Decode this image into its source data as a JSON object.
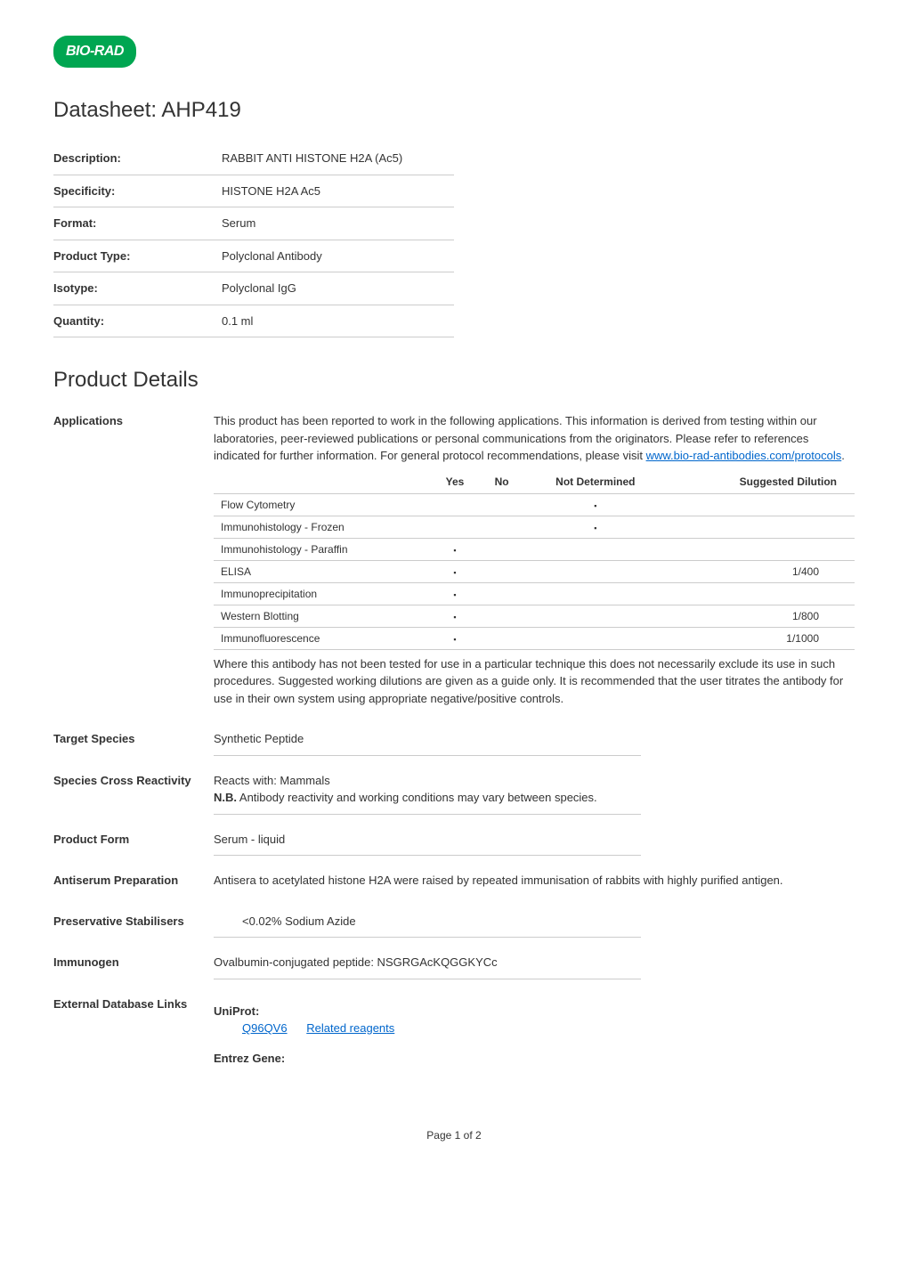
{
  "logo": {
    "text": "BIO-RAD"
  },
  "title": "Datasheet: AHP419",
  "info_table": {
    "rows": [
      {
        "label": "Description:",
        "value": "RABBIT ANTI HISTONE H2A (Ac5)"
      },
      {
        "label": "Specificity:",
        "value": "HISTONE H2A Ac5"
      },
      {
        "label": "Format:",
        "value": "Serum"
      },
      {
        "label": "Product Type:",
        "value": "Polyclonal Antibody"
      },
      {
        "label": "Isotype:",
        "value": "Polyclonal IgG"
      },
      {
        "label": "Quantity:",
        "value": "0.1 ml"
      }
    ]
  },
  "details_heading": "Product Details",
  "applications": {
    "label": "Applications",
    "intro": "This product has been reported to work in the following applications. This information is derived from testing within our laboratories, peer-reviewed publications or personal communications from the originators. Please refer to references indicated for further information. For general protocol recommendations, please visit ",
    "link_text": "www.bio-rad-antibodies.com/protocols",
    "intro_end": ".",
    "table": {
      "headers": [
        "",
        "Yes",
        "No",
        "Not Determined",
        "Suggested Dilution"
      ],
      "rows": [
        {
          "name": "Flow Cytometry",
          "yes": "",
          "no": "",
          "nd": "dot",
          "dilution": ""
        },
        {
          "name": "Immunohistology - Frozen",
          "yes": "",
          "no": "",
          "nd": "dot",
          "dilution": ""
        },
        {
          "name": "Immunohistology - Paraffin",
          "yes": "dot",
          "no": "",
          "nd": "",
          "dilution": ""
        },
        {
          "name": "ELISA",
          "yes": "dot",
          "no": "",
          "nd": "",
          "dilution": "1/400"
        },
        {
          "name": "Immunoprecipitation",
          "yes": "dot",
          "no": "",
          "nd": "",
          "dilution": ""
        },
        {
          "name": "Western Blotting",
          "yes": "dot",
          "no": "",
          "nd": "",
          "dilution": "1/800"
        },
        {
          "name": "Immunofluorescence",
          "yes": "dot",
          "no": "",
          "nd": "",
          "dilution": "1/1000"
        }
      ]
    },
    "footnote": "Where this antibody has not been tested for use in a particular technique this does not necessarily exclude its use in such procedures. Suggested working dilutions are given as a guide only. It is recommended that the user titrates the antibody for use in their own system using appropriate negative/positive controls."
  },
  "target_species": {
    "label": "Target Species",
    "value": "Synthetic Peptide"
  },
  "cross_reactivity": {
    "label": "Species Cross Reactivity",
    "line1": "Reacts with: Mammals",
    "line2_bold": "N.B.",
    "line2_rest": " Antibody reactivity and working conditions may vary between species."
  },
  "product_form": {
    "label": "Product Form",
    "value": "Serum - liquid"
  },
  "antiserum_prep": {
    "label": "Antiserum Preparation",
    "value": "Antisera to acetylated histone H2A were raised by repeated immunisation of rabbits with highly purified antigen."
  },
  "preservative": {
    "label": "Preservative Stabilisers",
    "value": "<0.02% Sodium Azide"
  },
  "immunogen": {
    "label": "Immunogen",
    "value": "Ovalbumin-conjugated peptide: NSGRGAcKQGGKYCc"
  },
  "external_db": {
    "label": "External Database Links",
    "uniprot_label": "UniProt:",
    "uniprot_id": "Q96QV6",
    "related_reagents": "Related reagents",
    "entrez_label": "Entrez Gene:"
  },
  "footer": "Page 1 of 2",
  "colors": {
    "logo_bg": "#00a651",
    "logo_text": "#ffffff",
    "link": "#0066cc",
    "border": "#cccccc",
    "text": "#333333"
  }
}
